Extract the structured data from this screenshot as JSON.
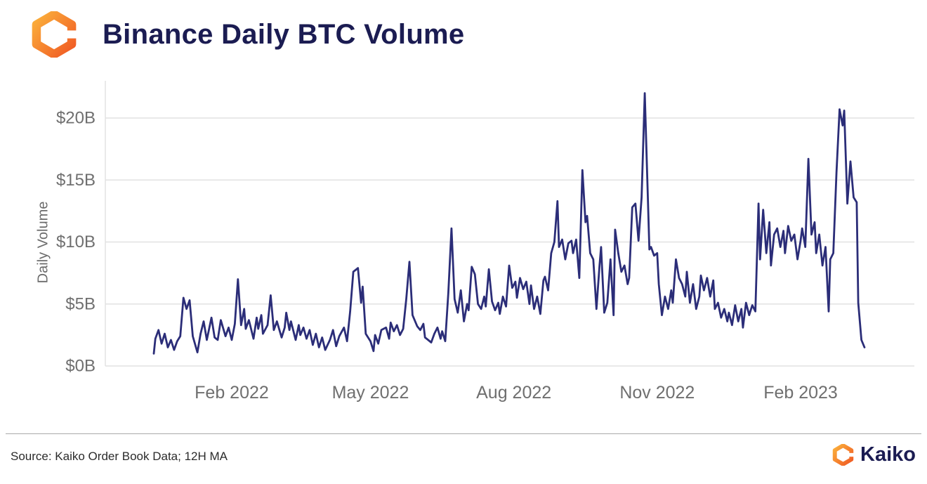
{
  "header": {
    "title": "Binance Daily BTC Volume"
  },
  "footer": {
    "source": "Source: Kaiko Order Book Data; 12H MA",
    "brand": "Kaiko"
  },
  "icons": {
    "logo": "kaiko-hexagon-mark"
  },
  "colors": {
    "line": "#2b2d78",
    "title_navy": "#1b1c52",
    "grid": "#e2e2e2",
    "tick_gray": "#6f6f6f",
    "brand_orange_dark": "#f05a24",
    "brand_orange_light": "#fbb03b"
  },
  "chart_data": {
    "type": "line",
    "title": "Binance Daily BTC Volume",
    "xlabel": "",
    "ylabel": "Daily Volume",
    "unit": "USD billions per day",
    "ylim": [
      0,
      23
    ],
    "grid": "horizontal",
    "legend": "none",
    "x_range": [
      "2021-12-13",
      "2023-03-14"
    ],
    "y_ticks": [
      {
        "value": 0,
        "label": "$0B"
      },
      {
        "value": 5,
        "label": "$5B"
      },
      {
        "value": 10,
        "label": "$10B"
      },
      {
        "value": 15,
        "label": "$15B"
      },
      {
        "value": 20,
        "label": "$20B"
      }
    ],
    "x_ticks": [
      {
        "date": "2022-02-01",
        "label": "Feb 2022"
      },
      {
        "date": "2022-05-01",
        "label": "May 2022"
      },
      {
        "date": "2022-08-01",
        "label": "Aug 2022"
      },
      {
        "date": "2022-11-01",
        "label": "Nov 2022"
      },
      {
        "date": "2023-02-01",
        "label": "Feb 2023"
      }
    ],
    "series": [
      {
        "name": "Binance daily BTC volume (12H MA), $B",
        "points": [
          [
            "2021-12-13",
            1.0
          ],
          [
            "2021-12-14",
            2.2
          ],
          [
            "2021-12-16",
            2.9
          ],
          [
            "2021-12-18",
            1.8
          ],
          [
            "2021-12-20",
            2.6
          ],
          [
            "2021-12-22",
            1.5
          ],
          [
            "2021-12-24",
            2.1
          ],
          [
            "2021-12-26",
            1.3
          ],
          [
            "2021-12-28",
            2.0
          ],
          [
            "2021-12-30",
            2.4
          ],
          [
            "2022-01-01",
            5.5
          ],
          [
            "2022-01-03",
            4.6
          ],
          [
            "2022-01-05",
            5.3
          ],
          [
            "2022-01-07",
            2.4
          ],
          [
            "2022-01-10",
            1.1
          ],
          [
            "2022-01-12",
            2.6
          ],
          [
            "2022-01-14",
            3.6
          ],
          [
            "2022-01-16",
            2.1
          ],
          [
            "2022-01-19",
            3.9
          ],
          [
            "2022-01-21",
            2.3
          ],
          [
            "2022-01-23",
            2.1
          ],
          [
            "2022-01-25",
            3.7
          ],
          [
            "2022-01-28",
            2.4
          ],
          [
            "2022-01-30",
            3.1
          ],
          [
            "2022-02-01",
            2.1
          ],
          [
            "2022-02-03",
            3.4
          ],
          [
            "2022-02-05",
            7.0
          ],
          [
            "2022-02-07",
            3.3
          ],
          [
            "2022-02-09",
            4.6
          ],
          [
            "2022-02-10",
            3.0
          ],
          [
            "2022-02-12",
            3.7
          ],
          [
            "2022-02-15",
            2.2
          ],
          [
            "2022-02-17",
            3.9
          ],
          [
            "2022-02-18",
            3.0
          ],
          [
            "2022-02-20",
            4.1
          ],
          [
            "2022-02-21",
            2.6
          ],
          [
            "2022-02-24",
            3.3
          ],
          [
            "2022-02-26",
            5.7
          ],
          [
            "2022-02-28",
            2.9
          ],
          [
            "2022-03-02",
            3.6
          ],
          [
            "2022-03-05",
            2.3
          ],
          [
            "2022-03-07",
            3.1
          ],
          [
            "2022-03-08",
            4.3
          ],
          [
            "2022-03-10",
            2.9
          ],
          [
            "2022-03-11",
            3.6
          ],
          [
            "2022-03-14",
            2.1
          ],
          [
            "2022-03-16",
            3.3
          ],
          [
            "2022-03-17",
            2.5
          ],
          [
            "2022-03-19",
            3.1
          ],
          [
            "2022-03-21",
            2.2
          ],
          [
            "2022-03-23",
            2.9
          ],
          [
            "2022-03-25",
            1.7
          ],
          [
            "2022-03-27",
            2.6
          ],
          [
            "2022-03-29",
            1.5
          ],
          [
            "2022-03-31",
            2.3
          ],
          [
            "2022-04-02",
            1.3
          ],
          [
            "2022-04-05",
            2.1
          ],
          [
            "2022-04-07",
            2.9
          ],
          [
            "2022-04-09",
            1.6
          ],
          [
            "2022-04-11",
            2.4
          ],
          [
            "2022-04-14",
            3.1
          ],
          [
            "2022-04-16",
            2.0
          ],
          [
            "2022-04-18",
            4.4
          ],
          [
            "2022-04-20",
            7.6
          ],
          [
            "2022-04-23",
            7.9
          ],
          [
            "2022-04-25",
            5.1
          ],
          [
            "2022-04-26",
            6.4
          ],
          [
            "2022-04-28",
            2.6
          ],
          [
            "2022-05-01",
            2.0
          ],
          [
            "2022-05-03",
            1.2
          ],
          [
            "2022-05-04",
            2.5
          ],
          [
            "2022-05-06",
            1.8
          ],
          [
            "2022-05-08",
            2.9
          ],
          [
            "2022-05-11",
            3.1
          ],
          [
            "2022-05-13",
            2.2
          ],
          [
            "2022-05-14",
            3.5
          ],
          [
            "2022-05-16",
            2.8
          ],
          [
            "2022-05-18",
            3.3
          ],
          [
            "2022-05-20",
            2.5
          ],
          [
            "2022-05-22",
            3.0
          ],
          [
            "2022-05-24",
            5.4
          ],
          [
            "2022-05-26",
            8.4
          ],
          [
            "2022-05-28",
            4.1
          ],
          [
            "2022-05-31",
            3.2
          ],
          [
            "2022-06-02",
            2.9
          ],
          [
            "2022-06-04",
            3.4
          ],
          [
            "2022-06-05",
            2.3
          ],
          [
            "2022-06-07",
            2.1
          ],
          [
            "2022-06-09",
            1.9
          ],
          [
            "2022-06-11",
            2.6
          ],
          [
            "2022-06-13",
            3.1
          ],
          [
            "2022-06-15",
            2.2
          ],
          [
            "2022-06-16",
            2.8
          ],
          [
            "2022-06-18",
            2.0
          ],
          [
            "2022-06-20",
            5.9
          ],
          [
            "2022-06-22",
            11.1
          ],
          [
            "2022-06-24",
            5.4
          ],
          [
            "2022-06-26",
            4.3
          ],
          [
            "2022-06-28",
            6.1
          ],
          [
            "2022-06-30",
            3.6
          ],
          [
            "2022-07-02",
            5.0
          ],
          [
            "2022-07-03",
            4.5
          ],
          [
            "2022-07-05",
            8.0
          ],
          [
            "2022-07-07",
            7.4
          ],
          [
            "2022-07-09",
            5.0
          ],
          [
            "2022-07-11",
            4.6
          ],
          [
            "2022-07-13",
            5.6
          ],
          [
            "2022-07-14",
            4.8
          ],
          [
            "2022-07-16",
            7.8
          ],
          [
            "2022-07-18",
            5.2
          ],
          [
            "2022-07-20",
            4.5
          ],
          [
            "2022-07-22",
            5.1
          ],
          [
            "2022-07-23",
            4.2
          ],
          [
            "2022-07-25",
            5.6
          ],
          [
            "2022-07-27",
            4.8
          ],
          [
            "2022-07-29",
            8.1
          ],
          [
            "2022-07-31",
            6.3
          ],
          [
            "2022-08-02",
            6.8
          ],
          [
            "2022-08-03",
            5.5
          ],
          [
            "2022-08-05",
            7.1
          ],
          [
            "2022-08-07",
            6.2
          ],
          [
            "2022-08-09",
            6.8
          ],
          [
            "2022-08-11",
            5.0
          ],
          [
            "2022-08-12",
            6.5
          ],
          [
            "2022-08-14",
            4.6
          ],
          [
            "2022-08-16",
            5.6
          ],
          [
            "2022-08-18",
            4.2
          ],
          [
            "2022-08-20",
            6.9
          ],
          [
            "2022-08-21",
            7.2
          ],
          [
            "2022-08-23",
            6.1
          ],
          [
            "2022-08-25",
            9.1
          ],
          [
            "2022-08-27",
            10.0
          ],
          [
            "2022-08-29",
            13.3
          ],
          [
            "2022-08-30",
            9.6
          ],
          [
            "2022-09-01",
            10.2
          ],
          [
            "2022-09-03",
            8.6
          ],
          [
            "2022-09-05",
            9.9
          ],
          [
            "2022-09-07",
            10.1
          ],
          [
            "2022-09-08",
            9.1
          ],
          [
            "2022-09-10",
            10.2
          ],
          [
            "2022-09-12",
            7.1
          ],
          [
            "2022-09-14",
            15.8
          ],
          [
            "2022-09-16",
            11.6
          ],
          [
            "2022-09-17",
            12.1
          ],
          [
            "2022-09-19",
            9.1
          ],
          [
            "2022-09-21",
            8.6
          ],
          [
            "2022-09-23",
            4.6
          ],
          [
            "2022-09-25",
            8.1
          ],
          [
            "2022-09-26",
            9.6
          ],
          [
            "2022-09-28",
            4.3
          ],
          [
            "2022-09-30",
            5.1
          ],
          [
            "2022-10-02",
            8.6
          ],
          [
            "2022-10-04",
            4.1
          ],
          [
            "2022-10-05",
            11.0
          ],
          [
            "2022-10-07",
            9.1
          ],
          [
            "2022-10-09",
            7.6
          ],
          [
            "2022-10-11",
            8.1
          ],
          [
            "2022-10-13",
            6.6
          ],
          [
            "2022-10-14",
            7.1
          ],
          [
            "2022-10-16",
            12.8
          ],
          [
            "2022-10-18",
            13.1
          ],
          [
            "2022-10-20",
            10.1
          ],
          [
            "2022-10-22",
            13.6
          ],
          [
            "2022-10-24",
            22.0
          ],
          [
            "2022-10-27",
            9.4
          ],
          [
            "2022-10-28",
            9.6
          ],
          [
            "2022-10-30",
            8.9
          ],
          [
            "2022-11-01",
            9.1
          ],
          [
            "2022-11-02",
            6.6
          ],
          [
            "2022-11-04",
            4.1
          ],
          [
            "2022-11-06",
            5.6
          ],
          [
            "2022-11-08",
            4.6
          ],
          [
            "2022-11-10",
            6.1
          ],
          [
            "2022-11-11",
            5.1
          ],
          [
            "2022-11-13",
            8.6
          ],
          [
            "2022-11-15",
            7.1
          ],
          [
            "2022-11-17",
            6.6
          ],
          [
            "2022-11-19",
            5.6
          ],
          [
            "2022-11-20",
            7.6
          ],
          [
            "2022-11-22",
            5.1
          ],
          [
            "2022-11-24",
            6.6
          ],
          [
            "2022-11-26",
            4.6
          ],
          [
            "2022-11-28",
            5.6
          ],
          [
            "2022-11-29",
            7.3
          ],
          [
            "2022-12-01",
            6.1
          ],
          [
            "2022-12-03",
            7.1
          ],
          [
            "2022-12-05",
            5.6
          ],
          [
            "2022-12-07",
            6.9
          ],
          [
            "2022-12-08",
            4.6
          ],
          [
            "2022-12-10",
            5.1
          ],
          [
            "2022-12-12",
            3.9
          ],
          [
            "2022-12-14",
            4.6
          ],
          [
            "2022-12-16",
            3.6
          ],
          [
            "2022-12-17",
            4.3
          ],
          [
            "2022-12-19",
            3.3
          ],
          [
            "2022-12-21",
            4.9
          ],
          [
            "2022-12-23",
            3.6
          ],
          [
            "2022-12-25",
            4.6
          ],
          [
            "2022-12-26",
            3.1
          ],
          [
            "2022-12-28",
            5.1
          ],
          [
            "2022-12-30",
            4.1
          ],
          [
            "2023-01-01",
            4.9
          ],
          [
            "2023-01-03",
            4.4
          ],
          [
            "2023-01-05",
            13.1
          ],
          [
            "2023-01-06",
            8.6
          ],
          [
            "2023-01-08",
            12.6
          ],
          [
            "2023-01-10",
            9.1
          ],
          [
            "2023-01-12",
            11.6
          ],
          [
            "2023-01-13",
            8.1
          ],
          [
            "2023-01-15",
            10.6
          ],
          [
            "2023-01-17",
            11.1
          ],
          [
            "2023-01-19",
            9.6
          ],
          [
            "2023-01-21",
            10.9
          ],
          [
            "2023-01-22",
            9.1
          ],
          [
            "2023-01-24",
            11.3
          ],
          [
            "2023-01-26",
            10.1
          ],
          [
            "2023-01-28",
            10.6
          ],
          [
            "2023-01-30",
            8.6
          ],
          [
            "2023-02-01",
            10.1
          ],
          [
            "2023-02-02",
            11.1
          ],
          [
            "2023-02-04",
            9.6
          ],
          [
            "2023-02-06",
            16.7
          ],
          [
            "2023-02-08",
            10.6
          ],
          [
            "2023-02-10",
            11.6
          ],
          [
            "2023-02-11",
            9.1
          ],
          [
            "2023-02-13",
            10.6
          ],
          [
            "2023-02-15",
            8.1
          ],
          [
            "2023-02-17",
            9.6
          ],
          [
            "2023-02-19",
            4.4
          ],
          [
            "2023-02-20",
            8.6
          ],
          [
            "2023-02-22",
            9.1
          ],
          [
            "2023-02-24",
            15.6
          ],
          [
            "2023-02-26",
            20.7
          ],
          [
            "2023-02-28",
            19.4
          ],
          [
            "2023-03-01",
            20.6
          ],
          [
            "2023-03-03",
            13.1
          ],
          [
            "2023-03-05",
            16.5
          ],
          [
            "2023-03-07",
            13.6
          ],
          [
            "2023-03-09",
            13.2
          ],
          [
            "2023-03-10",
            5.1
          ],
          [
            "2023-03-12",
            2.1
          ],
          [
            "2023-03-14",
            1.5
          ]
        ]
      }
    ]
  }
}
